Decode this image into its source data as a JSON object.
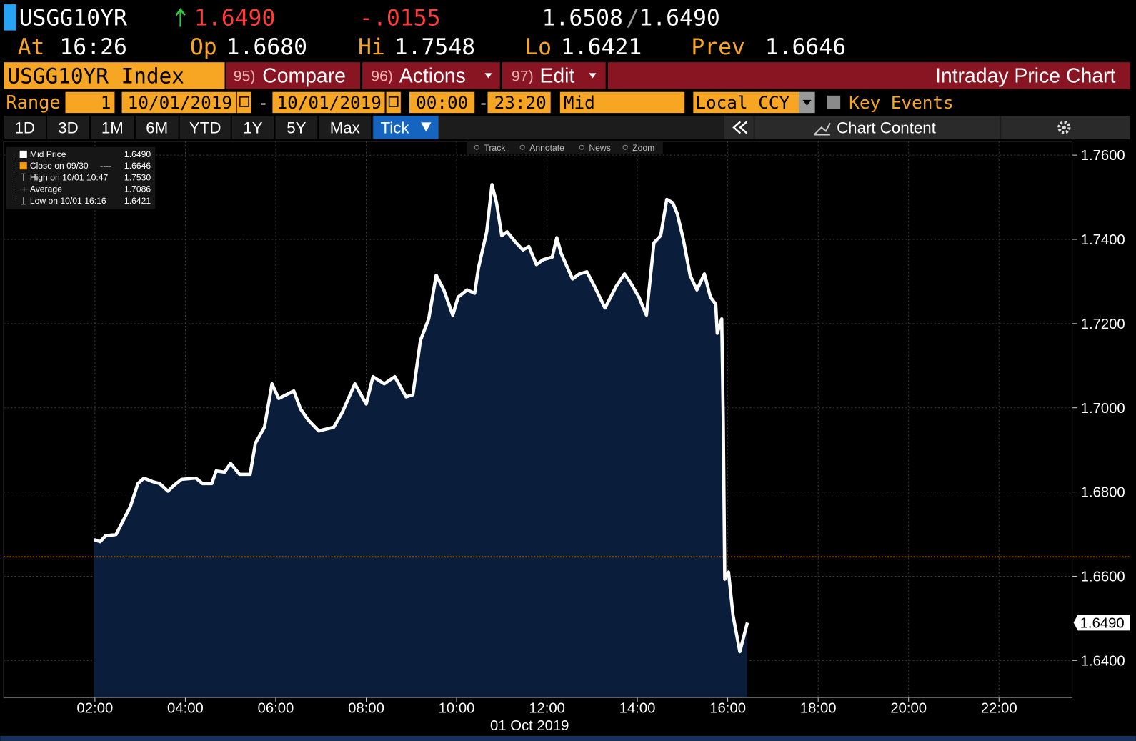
{
  "header": {
    "ticker": "USGG10YR",
    "last": "1.6490",
    "change": "-.0155",
    "bid": "1.6508",
    "separator": "/",
    "ask": "1.6490"
  },
  "quote": {
    "at_label": "At",
    "at": "16:26",
    "open_label": "Op",
    "open": "1.6680",
    "high_label": "Hi",
    "high": "1.7548",
    "low_label": "Lo",
    "low": "1.6421",
    "prev_label": "Prev",
    "prev": "1.6646"
  },
  "menu": {
    "security": "USGG10YR Index",
    "items": [
      {
        "number": "95)",
        "label": "Compare"
      },
      {
        "number": "96)",
        "label": "Actions"
      },
      {
        "number": "97)",
        "label": "Edit"
      }
    ],
    "title": "Intraday Price Chart"
  },
  "range": {
    "label": "Range",
    "periods": "1",
    "start_date": "10/01/2019",
    "date_separator": "-",
    "end_date": "10/01/2019",
    "start_time": "00:00",
    "time_separator": "-",
    "end_time": "23:20",
    "price_field": "Mid",
    "currency": "Local CCY",
    "key_events": "Key Events"
  },
  "tabs": [
    "1D",
    "3D",
    "1M",
    "6M",
    "YTD",
    "1Y",
    "5Y",
    "Max",
    "Tick"
  ],
  "active_tab": "Tick",
  "chart_content": "Chart Content",
  "toolbar": [
    "Track",
    "Annotate",
    "News",
    "Zoom"
  ],
  "chart_data": {
    "type": "area",
    "x_label": "01 Oct 2019",
    "x": [
      "01:59",
      "02:07",
      "02:14",
      "02:28",
      "02:38",
      "02:47",
      "02:57",
      "03:05",
      "03:16",
      "03:26",
      "03:37",
      "03:45",
      "03:55",
      "04:14",
      "04:23",
      "04:35",
      "04:41",
      "04:52",
      "05:00",
      "05:12",
      "05:26",
      "05:33",
      "05:45",
      "05:55",
      "06:04",
      "06:14",
      "06:24",
      "06:33",
      "06:43",
      "06:57",
      "07:17",
      "07:28",
      "07:45",
      "08:00",
      "08:09",
      "08:24",
      "08:38",
      "08:53",
      "09:02",
      "09:12",
      "09:23",
      "09:33",
      "09:43",
      "09:55",
      "10:02",
      "10:14",
      "10:24",
      "10:29",
      "10:40",
      "10:47",
      "10:53",
      "11:00",
      "11:07",
      "11:19",
      "11:28",
      "11:36",
      "11:46",
      "11:55",
      "12:07",
      "12:13",
      "12:19",
      "12:34",
      "12:43",
      "12:53",
      "13:03",
      "13:17",
      "13:32",
      "13:43",
      "13:51",
      "14:02",
      "14:12",
      "14:22",
      "14:31",
      "14:39",
      "14:47",
      "14:53",
      "15:01",
      "15:10",
      "15:19",
      "15:29",
      "15:37",
      "15:44",
      "15:46",
      "15:52",
      "15:54",
      "15:56",
      "16:01",
      "16:07",
      "16:16",
      "16:26"
    ],
    "series": [
      {
        "name": "Mid Price",
        "color": "#ffffff",
        "fill": "#0a1e3c",
        "values": [
          1.6687,
          1.6682,
          1.6696,
          1.6699,
          1.6734,
          1.6765,
          1.682,
          1.6833,
          1.6825,
          1.682,
          1.6802,
          1.6816,
          1.683,
          1.6833,
          1.682,
          1.682,
          1.685,
          1.6847,
          1.6868,
          1.6842,
          1.6842,
          1.6916,
          1.6954,
          1.7057,
          1.7022,
          1.7031,
          1.704,
          1.6997,
          1.6971,
          1.6945,
          1.6954,
          1.6988,
          1.7057,
          1.7009,
          1.7074,
          1.7057,
          1.7074,
          1.7026,
          1.7031,
          1.716,
          1.7211,
          1.7315,
          1.728,
          1.722,
          1.7263,
          1.728,
          1.7272,
          1.7332,
          1.7418,
          1.753,
          1.7487,
          1.7409,
          1.7418,
          1.7392,
          1.7375,
          1.7383,
          1.734,
          1.7352,
          1.7358,
          1.7404,
          1.7366,
          1.7306,
          1.7318,
          1.7323,
          1.7289,
          1.7237,
          1.7289,
          1.7318,
          1.7297,
          1.7263,
          1.722,
          1.7392,
          1.7409,
          1.7495,
          1.7487,
          1.7461,
          1.7401,
          1.7315,
          1.728,
          1.7318,
          1.7263,
          1.7246,
          1.7177,
          1.7211,
          1.6971,
          1.6593,
          1.661,
          1.6507,
          1.6421,
          1.649
        ]
      }
    ],
    "last_value": {
      "value": 1.649,
      "label": "1.6490"
    },
    "prev_close_line": {
      "value": 1.6646,
      "color": "#f39c12"
    },
    "legend": [
      {
        "label": "Close on 09/30",
        "style": "----",
        "value": "1.6646"
      },
      {
        "label": "High on 10/01 10:47",
        "value": "1.7530"
      },
      {
        "label": "Average",
        "value": "1.7086"
      },
      {
        "label": "Low on 10/01 16:16",
        "value": "1.6421"
      }
    ],
    "xlim": [
      "00:00",
      "23:37"
    ],
    "xticks": [
      "02:00",
      "04:00",
      "06:00",
      "08:00",
      "10:00",
      "12:00",
      "14:00",
      "16:00",
      "18:00",
      "20:00",
      "22:00"
    ],
    "ylim": [
      1.6312,
      1.7633
    ],
    "yticks": [
      {
        "value": 1.64,
        "label": "1.6400"
      },
      {
        "value": 1.66,
        "label": "1.6600"
      },
      {
        "value": 1.68,
        "label": "1.6800"
      },
      {
        "value": 1.7,
        "label": "1.7000"
      },
      {
        "value": 1.72,
        "label": "1.7200"
      },
      {
        "value": 1.74,
        "label": "1.7400"
      },
      {
        "value": 1.76,
        "label": "1.7600"
      }
    ],
    "grid": true
  }
}
